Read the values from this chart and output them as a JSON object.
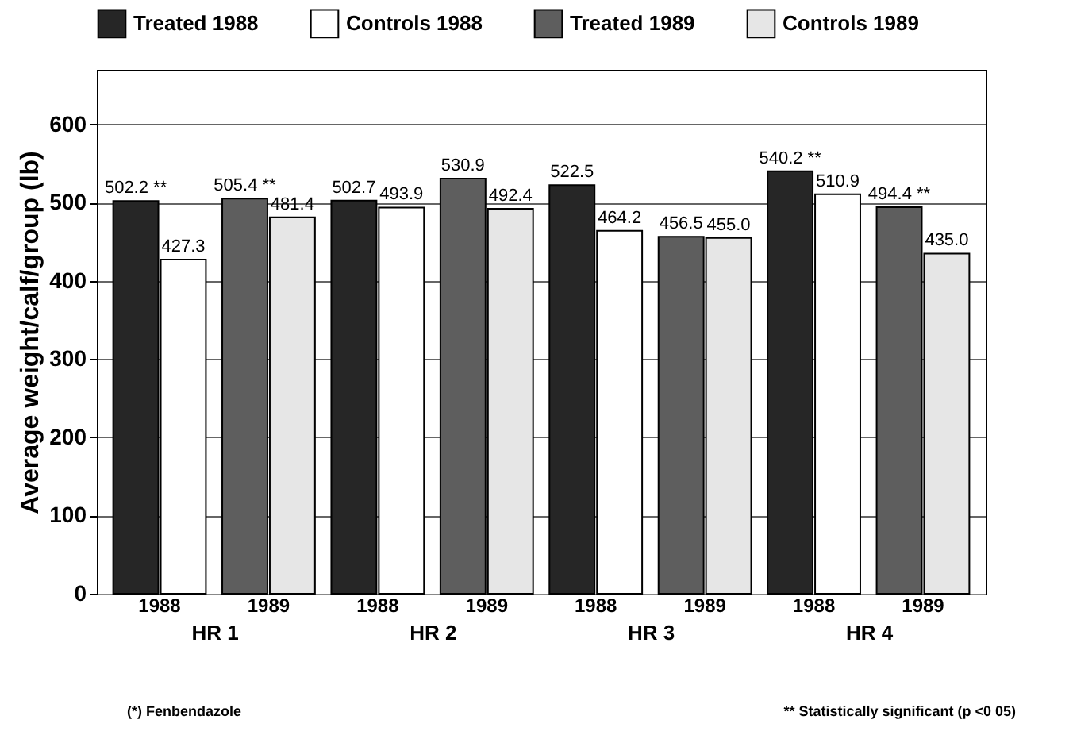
{
  "chart_data": {
    "type": "bar",
    "ylabel": "Average weight/calf/group (lb)",
    "categories": [
      "1988",
      "1989",
      "1988",
      "1989",
      "1988",
      "1989",
      "1988",
      "1989"
    ],
    "series": [
      {
        "name": "Treated 1988",
        "color": "#262626",
        "values": [
          502.2,
          null,
          502.7,
          null,
          522.5,
          null,
          540.2,
          null
        ],
        "value_labels": [
          "502.2 **",
          null,
          "502.7",
          null,
          "522.5",
          null,
          "540.2 **",
          null
        ]
      },
      {
        "name": "Controls 1988",
        "color": "#ffffff",
        "values": [
          427.3,
          null,
          493.9,
          null,
          464.2,
          null,
          510.9,
          null
        ],
        "value_labels": [
          "427.3",
          null,
          "493.9",
          null,
          "464.2",
          null,
          "510.9",
          null
        ]
      },
      {
        "name": "Treated 1989",
        "color": "#5e5e5e",
        "values": [
          null,
          505.4,
          null,
          530.9,
          null,
          456.5,
          null,
          494.4
        ],
        "value_labels": [
          null,
          "505.4 **",
          null,
          "530.9",
          null,
          "456.5",
          null,
          "494.4 **"
        ]
      },
      {
        "name": "Controls 1989",
        "color": "#e6e6e6",
        "values": [
          null,
          481.4,
          null,
          492.4,
          null,
          455.0,
          null,
          435.0
        ],
        "value_labels": [
          null,
          "481.4",
          null,
          "492.4",
          null,
          "455.0",
          null,
          "435.0"
        ]
      }
    ],
    "ylim": [
      0,
      670
    ],
    "yticks": [
      0,
      100,
      200,
      300,
      400,
      500,
      600
    ],
    "grid": "y",
    "legend": "top",
    "annotations": [
      "HR 1",
      "HR 2",
      "HR 3",
      "HR 4",
      "(*) Fenbendazole",
      "** Statistically significant (p <0 05)"
    ]
  }
}
